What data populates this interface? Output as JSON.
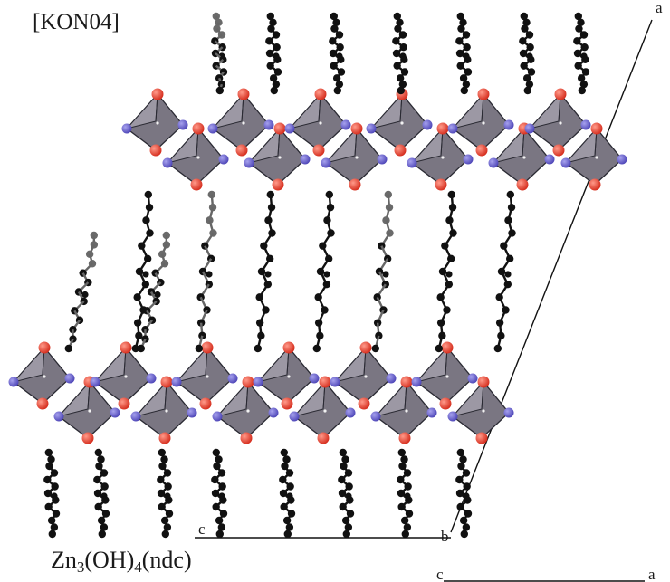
{
  "figure": {
    "reference_tag": "[KON04]",
    "formula_parts": [
      {
        "t": "Zn",
        "sub": false
      },
      {
        "t": "3",
        "sub": true
      },
      {
        "t": "(OH)",
        "sub": false
      },
      {
        "t": "4",
        "sub": true
      },
      {
        "t": "(ndc)",
        "sub": false
      }
    ],
    "cell_axes": {
      "a_top": "a",
      "b": "b",
      "c_cell": "c",
      "c_legend": "c",
      "a_legend": "a"
    }
  }
}
